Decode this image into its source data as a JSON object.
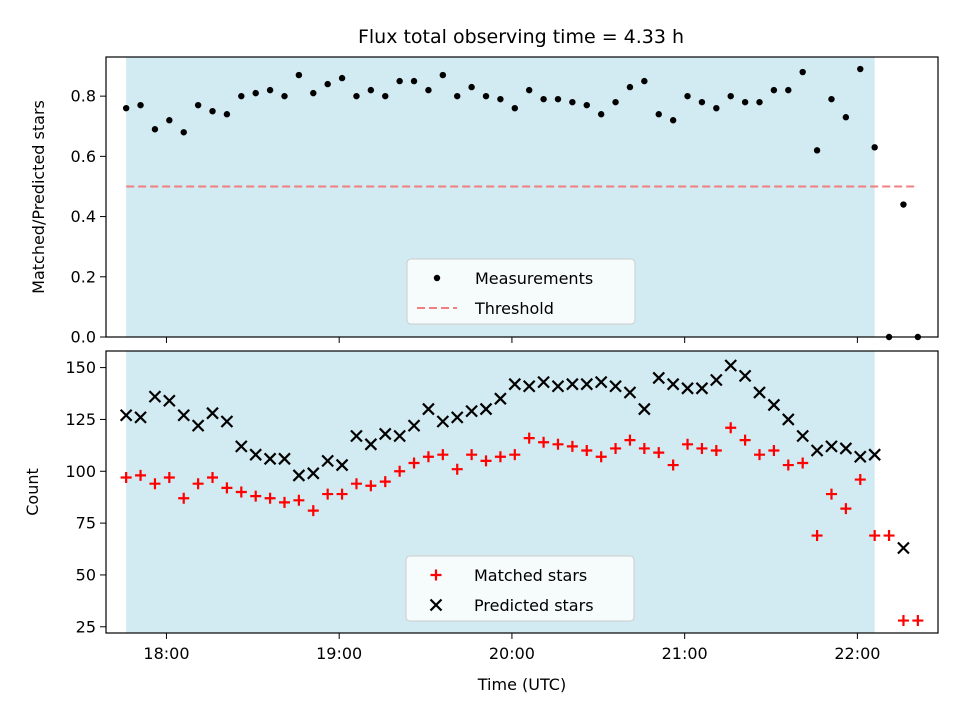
{
  "figure": {
    "title": "Flux total observing time = 4.33 h"
  },
  "chart_data": [
    {
      "type": "scatter",
      "panel": "top",
      "ylabel": "Matched/Predicted stars",
      "xlabel": "",
      "ylim": [
        0,
        0.93
      ],
      "yticks": [
        0.0,
        0.2,
        0.4,
        0.6,
        0.8
      ],
      "ytick_labels": [
        "0.0",
        "0.2",
        "0.4",
        "0.6",
        "0.8"
      ],
      "shade": {
        "from": "17:46",
        "to": "22:06",
        "color": "#add8e6"
      },
      "series": [
        {
          "name": "Measurements",
          "marker": "dot",
          "color": "#000000",
          "x": [
            "17:46",
            "17:51",
            "17:56",
            "18:01",
            "18:06",
            "18:11",
            "18:16",
            "18:21",
            "18:26",
            "18:31",
            "18:36",
            "18:41",
            "18:46",
            "18:51",
            "18:56",
            "19:01",
            "19:06",
            "19:11",
            "19:16",
            "19:21",
            "19:26",
            "19:31",
            "19:36",
            "19:41",
            "19:46",
            "19:51",
            "19:56",
            "20:01",
            "20:06",
            "20:11",
            "20:16",
            "20:21",
            "20:26",
            "20:31",
            "20:36",
            "20:41",
            "20:46",
            "20:51",
            "20:56",
            "21:01",
            "21:06",
            "21:11",
            "21:16",
            "21:21",
            "21:26",
            "21:31",
            "21:36",
            "21:41",
            "21:46",
            "21:51",
            "21:56",
            "22:01",
            "22:06",
            "22:11",
            "22:16",
            "22:21"
          ],
          "y": [
            0.76,
            0.77,
            0.69,
            0.72,
            0.68,
            0.77,
            0.75,
            0.74,
            0.8,
            0.81,
            0.82,
            0.8,
            0.87,
            0.81,
            0.84,
            0.86,
            0.8,
            0.82,
            0.8,
            0.85,
            0.85,
            0.82,
            0.87,
            0.8,
            0.83,
            0.8,
            0.79,
            0.76,
            0.82,
            0.79,
            0.79,
            0.78,
            0.77,
            0.74,
            0.78,
            0.83,
            0.85,
            0.74,
            0.72,
            0.8,
            0.78,
            0.76,
            0.8,
            0.78,
            0.78,
            0.82,
            0.82,
            0.88,
            0.62,
            0.79,
            0.73,
            0.89,
            0.63,
            0.0,
            0.44,
            0.0
          ]
        },
        {
          "name": "Threshold",
          "line": "dashed",
          "color": "#f08080",
          "x": [
            "17:46",
            "22:21"
          ],
          "y": [
            0.5,
            0.5
          ]
        }
      ],
      "legend": {
        "position": "lower center",
        "entries": [
          "Measurements",
          "Threshold"
        ]
      }
    },
    {
      "type": "scatter",
      "panel": "bottom",
      "ylabel": "Count",
      "xlabel": "Time (UTC)",
      "ylim": [
        22,
        158
      ],
      "yticks": [
        25,
        50,
        75,
        100,
        125,
        150
      ],
      "ytick_labels": [
        "25",
        "50",
        "75",
        "100",
        "125",
        "150"
      ],
      "xlim": [
        "17:39",
        "22:28"
      ],
      "xticks": [
        "18:00",
        "19:00",
        "20:00",
        "21:00",
        "22:00"
      ],
      "xtick_labels": [
        "18:00",
        "19:00",
        "20:00",
        "21:00",
        "22:00"
      ],
      "shade": {
        "from": "17:46",
        "to": "22:06",
        "color": "#add8e6"
      },
      "series": [
        {
          "name": "Matched stars",
          "marker": "plus",
          "color": "#ff0000",
          "x": [
            "17:46",
            "17:51",
            "17:56",
            "18:01",
            "18:06",
            "18:11",
            "18:16",
            "18:21",
            "18:26",
            "18:31",
            "18:36",
            "18:41",
            "18:46",
            "18:51",
            "18:56",
            "19:01",
            "19:06",
            "19:11",
            "19:16",
            "19:21",
            "19:26",
            "19:31",
            "19:36",
            "19:41",
            "19:46",
            "19:51",
            "19:56",
            "20:01",
            "20:06",
            "20:11",
            "20:16",
            "20:21",
            "20:26",
            "20:31",
            "20:36",
            "20:41",
            "20:46",
            "20:51",
            "20:56",
            "21:01",
            "21:06",
            "21:11",
            "21:16",
            "21:21",
            "21:26",
            "21:31",
            "21:36",
            "21:41",
            "21:46",
            "21:51",
            "21:56",
            "22:01",
            "22:06",
            "22:11",
            "22:16",
            "22:21"
          ],
          "y": [
            97,
            98,
            94,
            97,
            87,
            94,
            97,
            92,
            90,
            88,
            87,
            85,
            86,
            81,
            89,
            89,
            94,
            93,
            95,
            100,
            104,
            107,
            108,
            101,
            108,
            105,
            107,
            108,
            116,
            114,
            113,
            112,
            110,
            107,
            111,
            115,
            111,
            109,
            103,
            113,
            111,
            110,
            121,
            115,
            108,
            110,
            103,
            104,
            69,
            89,
            82,
            96,
            69,
            69,
            28,
            28
          ]
        },
        {
          "name": "Predicted stars",
          "marker": "x",
          "color": "#000000",
          "x": [
            "17:46",
            "17:51",
            "17:56",
            "18:01",
            "18:06",
            "18:11",
            "18:16",
            "18:21",
            "18:26",
            "18:31",
            "18:36",
            "18:41",
            "18:46",
            "18:51",
            "18:56",
            "19:01",
            "19:06",
            "19:11",
            "19:16",
            "19:21",
            "19:26",
            "19:31",
            "19:36",
            "19:41",
            "19:46",
            "19:51",
            "19:56",
            "20:01",
            "20:06",
            "20:11",
            "20:16",
            "20:21",
            "20:26",
            "20:31",
            "20:36",
            "20:41",
            "20:46",
            "20:51",
            "20:56",
            "21:01",
            "21:06",
            "21:11",
            "21:16",
            "21:21",
            "21:26",
            "21:31",
            "21:36",
            "21:41",
            "21:46",
            "21:51",
            "21:56",
            "22:01",
            "22:06",
            "22:16"
          ],
          "y": [
            127,
            126,
            136,
            134,
            127,
            122,
            128,
            124,
            112,
            108,
            106,
            106,
            98,
            99,
            105,
            103,
            117,
            113,
            118,
            117,
            122,
            130,
            124,
            126,
            129,
            130,
            135,
            142,
            141,
            143,
            141,
            142,
            142,
            143,
            141,
            138,
            130,
            145,
            142,
            140,
            140,
            144,
            151,
            146,
            138,
            132,
            125,
            117,
            110,
            112,
            111,
            107,
            108,
            63
          ]
        }
      ],
      "legend": {
        "position": "lower center",
        "entries": [
          "Matched stars",
          "Predicted stars"
        ]
      }
    }
  ]
}
